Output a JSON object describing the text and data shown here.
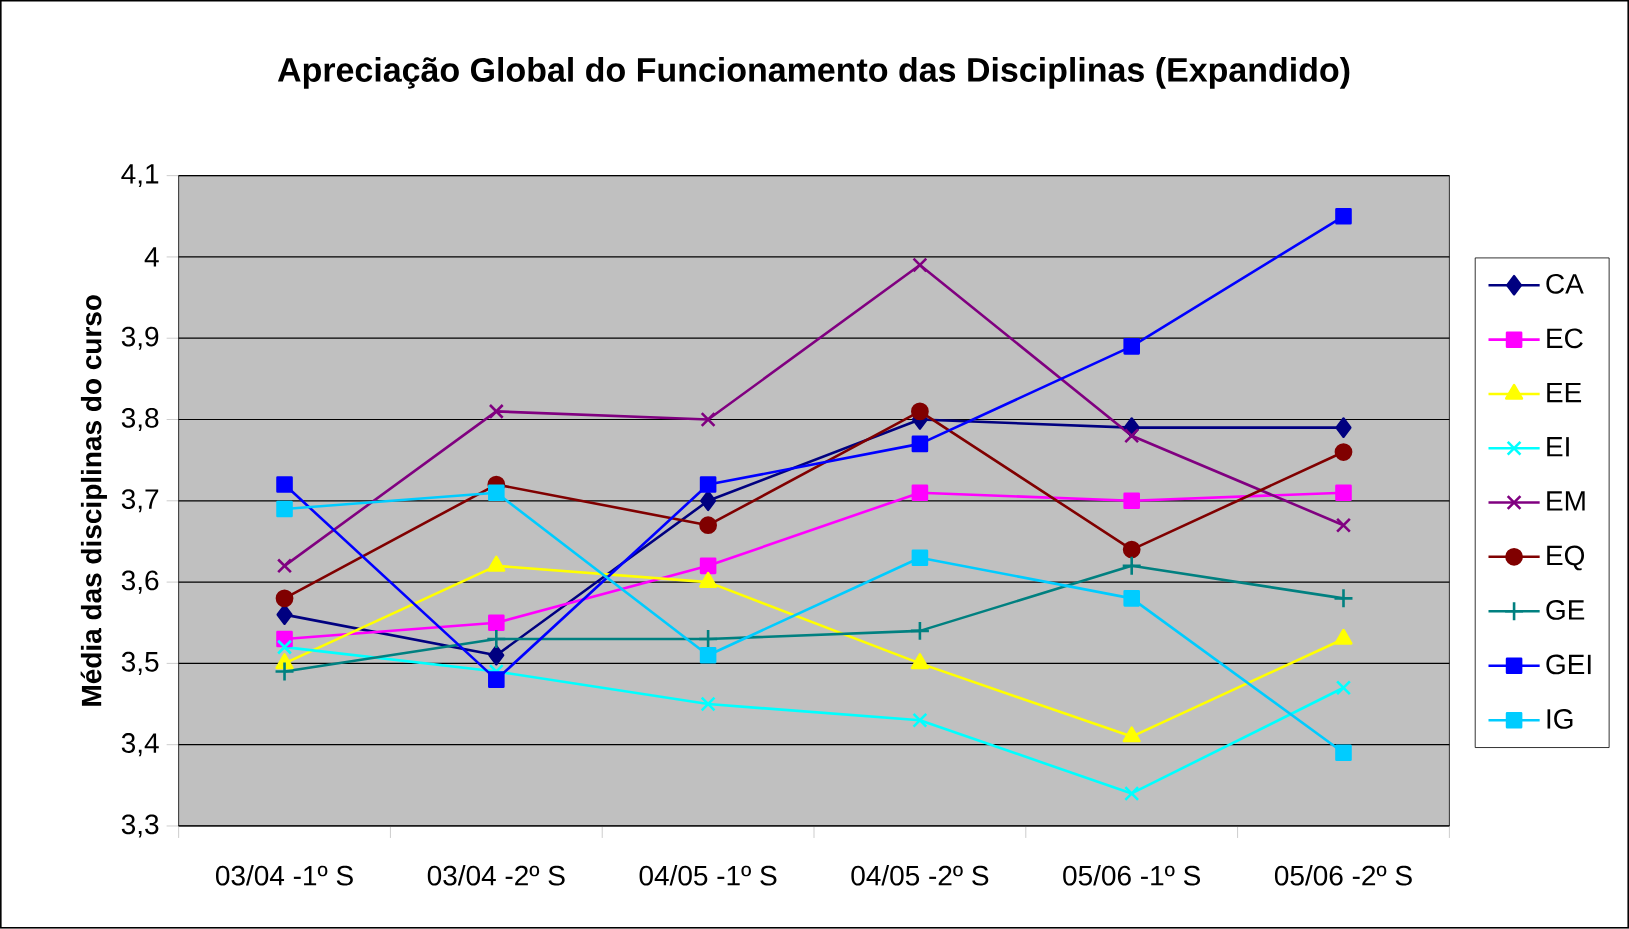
{
  "chart_data": {
    "type": "line",
    "title": "Apreciação Global do Funcionamento das Disciplinas (Expandido)",
    "ylabel": "Média das disciplinas do curso",
    "categories": [
      "03/04 -1º S",
      "03/04 -2º S",
      "04/05 -1º S",
      "04/05 -2º S",
      "05/06 -1º S",
      "05/06 -2º S"
    ],
    "ylim": [
      3.3,
      4.1
    ],
    "yticks": [
      {
        "value": 3.3,
        "label": "3,3"
      },
      {
        "value": 3.4,
        "label": "3,4"
      },
      {
        "value": 3.5,
        "label": "3,5"
      },
      {
        "value": 3.6,
        "label": "3,6"
      },
      {
        "value": 3.7,
        "label": "3,7"
      },
      {
        "value": 3.8,
        "label": "3,8"
      },
      {
        "value": 3.9,
        "label": "3,9"
      },
      4,
      {
        "value": 4.1,
        "label": "4,1"
      }
    ],
    "grid": "y",
    "legend": "right",
    "line_style": "solid",
    "series": [
      {
        "name": "CA",
        "color": "#000080",
        "marker": "diamond",
        "values": [
          3.56,
          3.51,
          3.7,
          3.8,
          3.79,
          3.79
        ]
      },
      {
        "name": "EC",
        "color": "#ff00ff",
        "marker": "square",
        "values": [
          3.53,
          3.55,
          3.62,
          3.71,
          3.7,
          3.71
        ]
      },
      {
        "name": "EE",
        "color": "#ffff00",
        "marker": "triangle",
        "values": [
          3.5,
          3.62,
          3.6,
          3.5,
          3.41,
          3.53
        ]
      },
      {
        "name": "EI",
        "color": "#00ffff",
        "marker": "cross",
        "values": [
          3.52,
          3.49,
          3.45,
          3.43,
          3.34,
          3.47
        ]
      },
      {
        "name": "EM",
        "color": "#800080",
        "marker": "cross",
        "values": [
          3.62,
          3.81,
          3.8,
          3.99,
          3.78,
          3.67
        ]
      },
      {
        "name": "EQ",
        "color": "#800000",
        "marker": "circle",
        "values": [
          3.58,
          3.72,
          3.67,
          3.81,
          3.64,
          3.76
        ]
      },
      {
        "name": "GE",
        "color": "#008080",
        "marker": "plus",
        "values": [
          3.49,
          3.53,
          3.53,
          3.54,
          3.62,
          3.58
        ]
      },
      {
        "name": "GEI",
        "color": "#0000ff",
        "marker": "square",
        "values": [
          3.72,
          3.48,
          3.72,
          3.77,
          3.89,
          4.05
        ]
      },
      {
        "name": "IG",
        "color": "#00ccff",
        "marker": "square",
        "values": [
          3.69,
          3.71,
          3.51,
          3.63,
          3.58,
          3.39
        ]
      }
    ]
  }
}
